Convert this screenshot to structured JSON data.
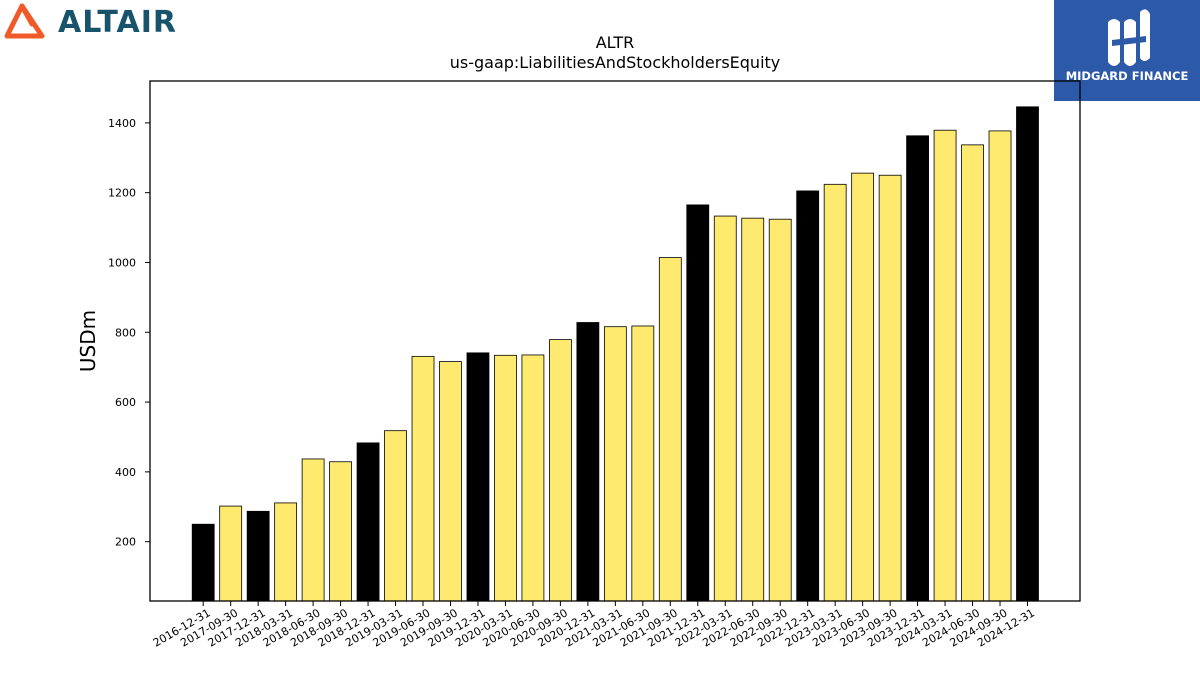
{
  "logos": {
    "altair": {
      "text": "ALTAIR",
      "color": "#17536b",
      "accent": "#f05a28"
    },
    "midgard": {
      "text": "MIDGARD FINANCE",
      "background": "#2d5aa8"
    }
  },
  "chart_data": {
    "type": "bar",
    "title": "ALTR",
    "subtitle": "us-gaap:LiabilitiesAndStockholdersEquity",
    "xlabel": "",
    "ylabel": "USDm",
    "ylim": [
      30,
      1520
    ],
    "yticks": [
      200,
      400,
      600,
      800,
      1000,
      1200,
      1400
    ],
    "grid": false,
    "categories": [
      "2016-12-31",
      "2017-09-30",
      "2017-12-31",
      "2018-03-31",
      "2018-06-30",
      "2018-09-30",
      "2018-12-31",
      "2019-03-31",
      "2019-06-30",
      "2019-09-30",
      "2019-12-31",
      "2020-03-31",
      "2020-06-30",
      "2020-09-30",
      "2020-12-31",
      "2021-03-31",
      "2021-06-30",
      "2021-09-30",
      "2021-12-31",
      "2022-03-31",
      "2022-06-30",
      "2022-09-30",
      "2022-12-31",
      "2023-03-31",
      "2023-06-30",
      "2023-09-30",
      "2023-12-31",
      "2024-03-31",
      "2024-06-30",
      "2024-09-30",
      "2024-12-31"
    ],
    "values": [
      250,
      302,
      287,
      311,
      437,
      429,
      483,
      518,
      731,
      716,
      741,
      734,
      735,
      779,
      828,
      816,
      818,
      1014,
      1165,
      1133,
      1127,
      1124,
      1205,
      1224,
      1256,
      1250,
      1363,
      1379,
      1337,
      1377,
      1446
    ],
    "colors": {
      "year_end": "#000000",
      "quarter": "#ffea70"
    }
  }
}
